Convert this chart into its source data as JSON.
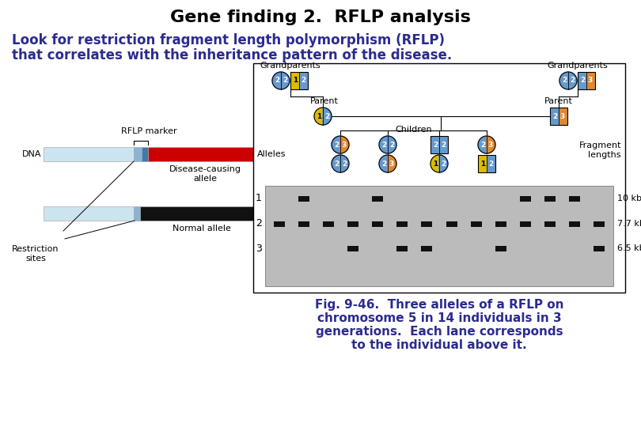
{
  "title": "Gene finding 2.  RFLP analysis",
  "subtitle_line1": "Look for restriction fragment length polymorphism (RFLP)",
  "subtitle_line2": "that correlates with the inheritance pattern of the disease.",
  "caption_line1": "Fig. 9-46.  Three alleles of a RFLP on",
  "caption_line2": "chromosome 5 in 14 individuals in 3",
  "caption_line3": "generations.  Each lane corresponds",
  "caption_line4": "to the individual above it.",
  "bg_color": "#ffffff",
  "title_color": "#000000",
  "subtitle_color": "#2b2b8f",
  "caption_color": "#2b2b8f",
  "blue_c": "#6699cc",
  "orange_c": "#dd8833",
  "yellow_c": "#ddbb00",
  "light_blue_dna": "#cce4f0",
  "red_dna": "#cc0000",
  "black_dna": "#111111",
  "marker_blue1": "#8ab4d4",
  "marker_blue2": "#4477aa"
}
